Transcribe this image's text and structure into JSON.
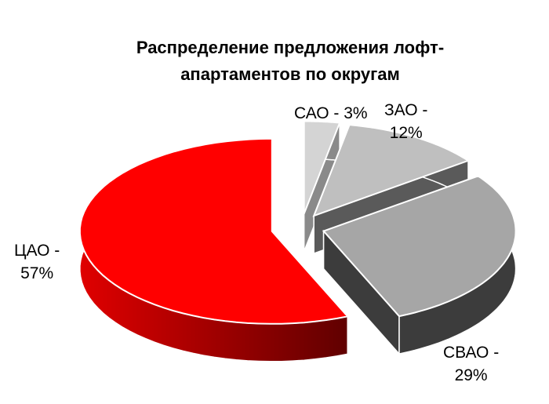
{
  "chart_data": {
    "type": "pie",
    "style": "3d-exploded",
    "title": "Распределение предложения лофт-апартаментов по округам",
    "title_lines": [
      "Распределение предложения лофт-",
      "апартаментов по округам"
    ],
    "slices": [
      {
        "name": "САО",
        "value": 3,
        "label_lines": [
          "САО - 3%"
        ],
        "color": "#d4d4d4",
        "side_color": "#8a8a8a"
      },
      {
        "name": "ЗАО",
        "value": 12,
        "label_lines": [
          "ЗАО -",
          "12%"
        ],
        "color": "#bfbfbf",
        "side_color": "#5a5a5a"
      },
      {
        "name": "СВАО",
        "value": 29,
        "label_lines": [
          "СВАО -",
          "29%"
        ],
        "color": "#a6a6a6",
        "side_color": "#3c3c3c"
      },
      {
        "name": "ЦАО",
        "value": 57,
        "label_lines": [
          "ЦАО -",
          "57%"
        ],
        "color": "#ff0000",
        "side_color": "#b00000"
      }
    ],
    "legend": "none"
  }
}
